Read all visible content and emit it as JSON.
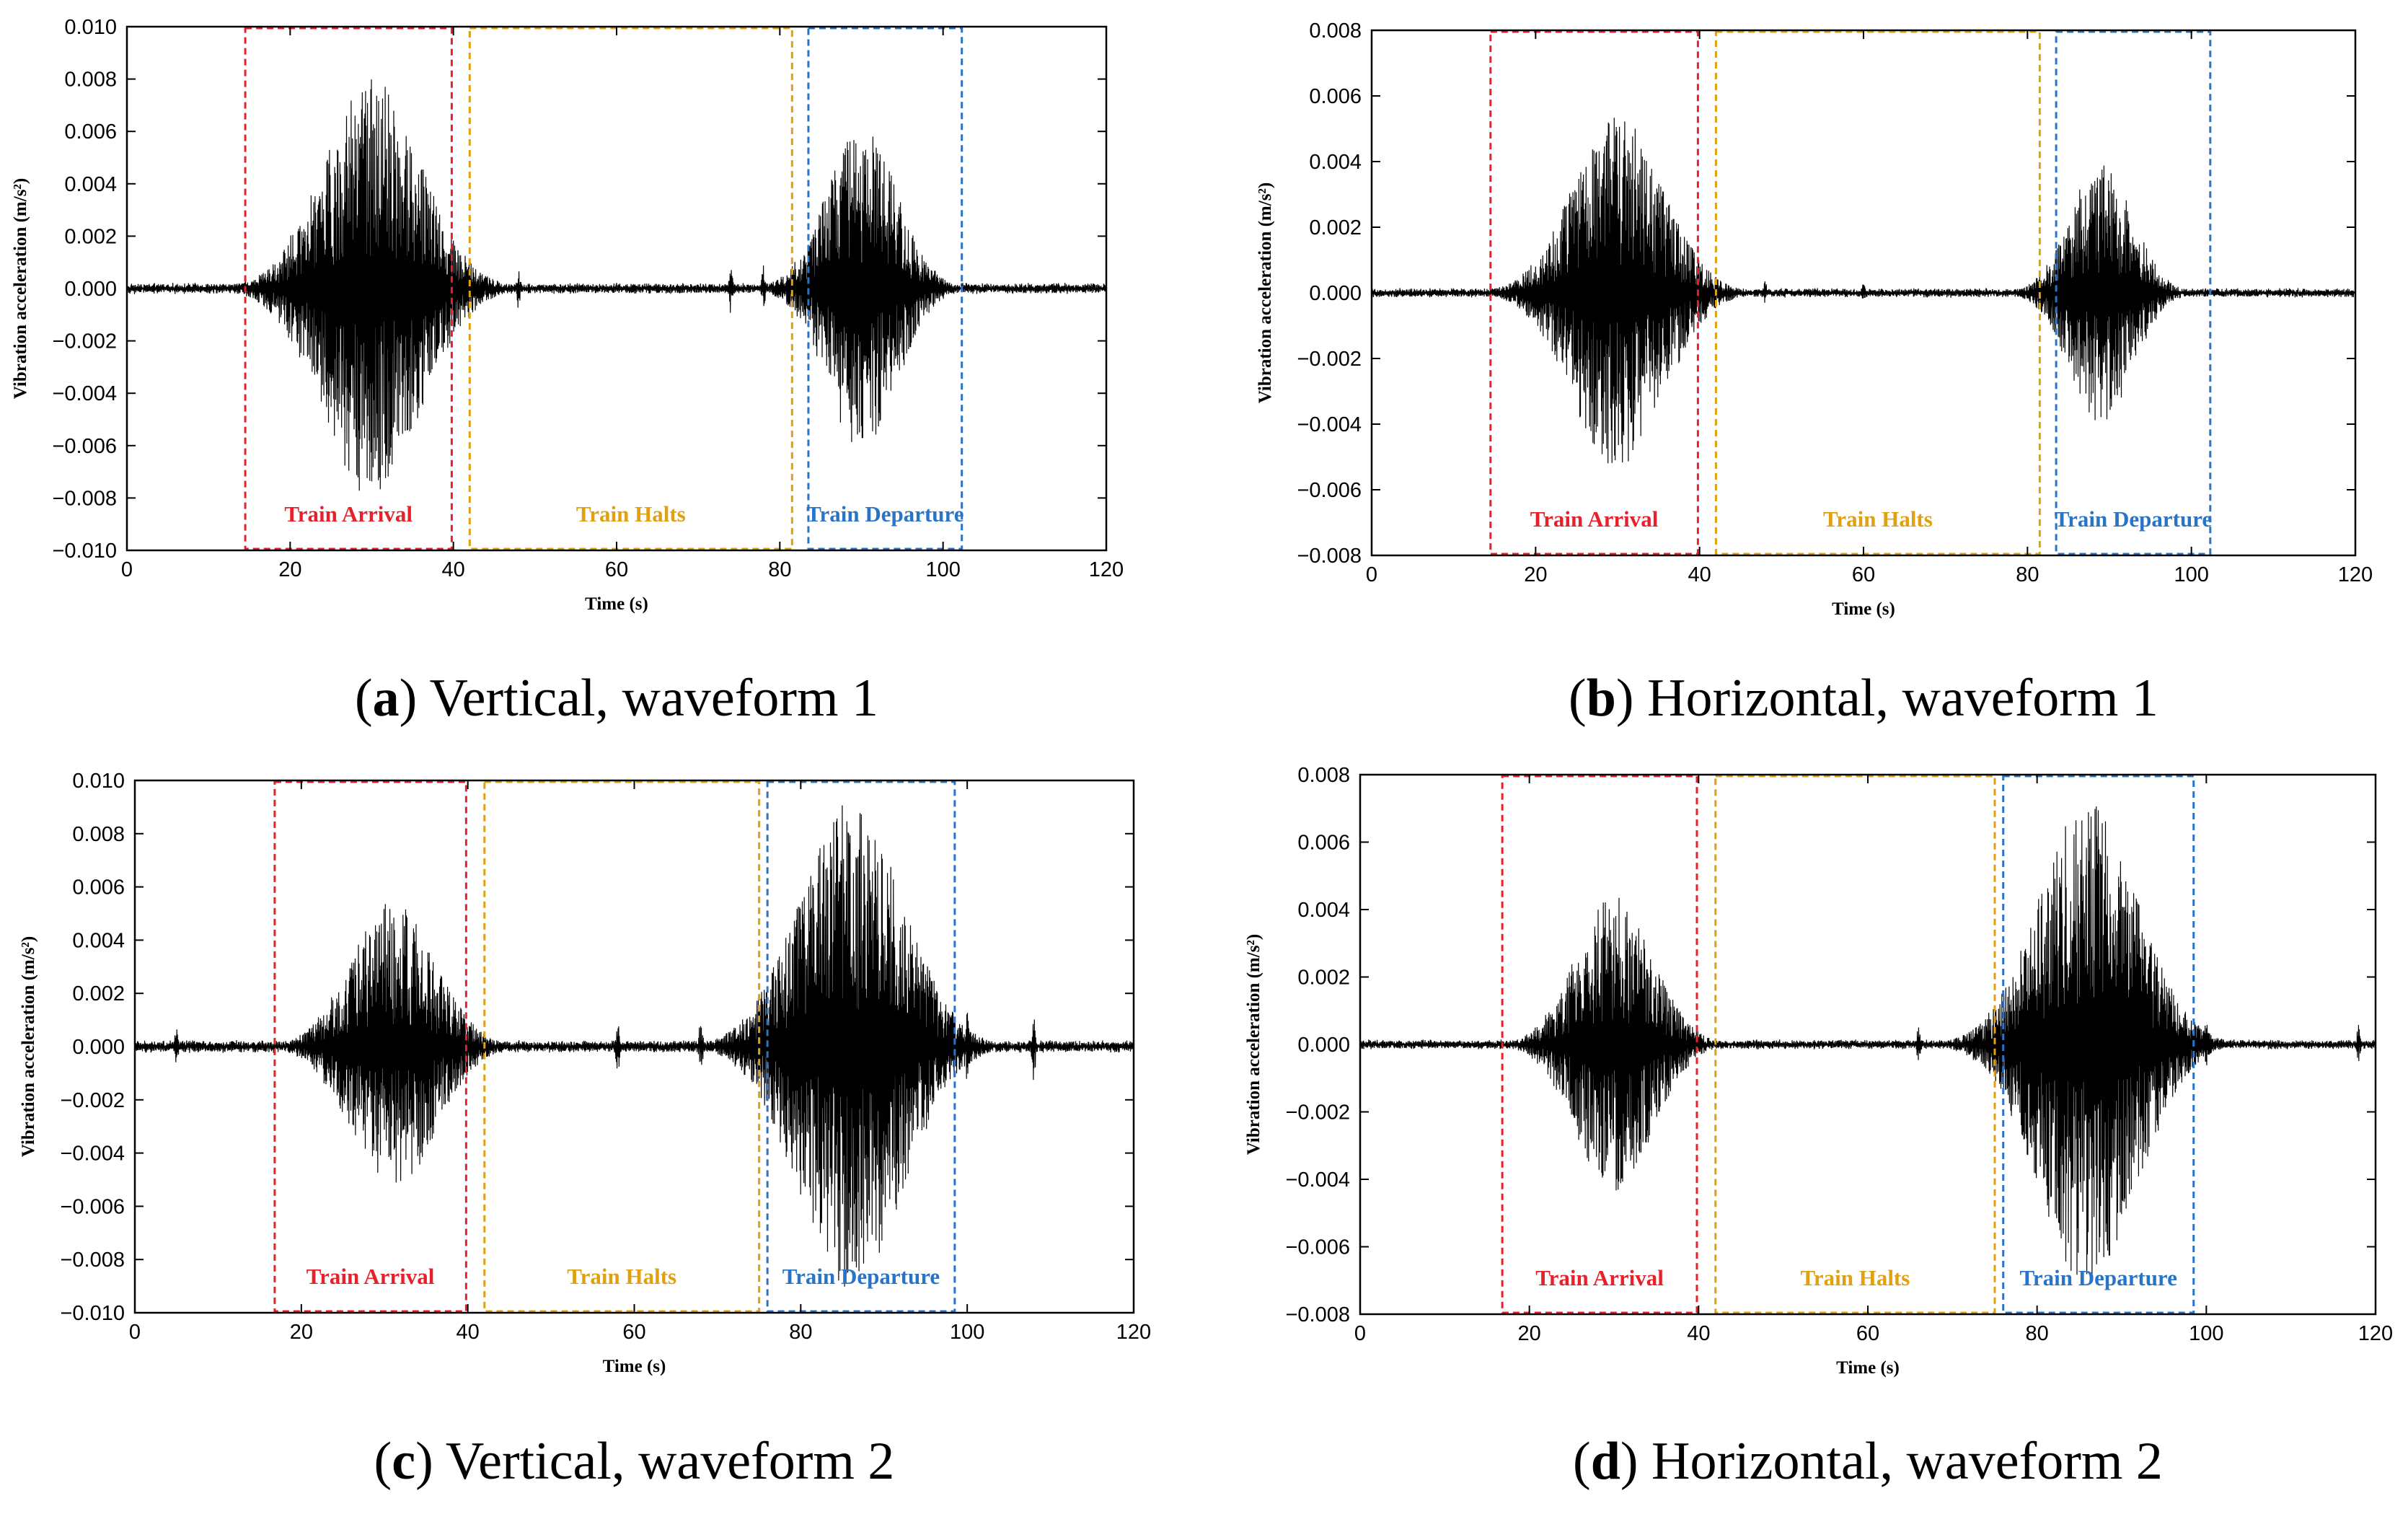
{
  "chart_data": [
    {
      "type": "line",
      "id": "a",
      "caption_letter": "a",
      "caption_text": "Vertical, waveform 1",
      "xlabel": "Time (s)",
      "ylabel": "Vibration acceleration (m/s²)",
      "xlim": [
        0,
        120
      ],
      "ylim": [
        -0.01,
        0.01
      ],
      "xticks": [
        "0",
        "20",
        "40",
        "60",
        "80",
        "100",
        "120"
      ],
      "yticks": [
        "0.010",
        "0.008",
        "0.006",
        "0.004",
        "0.002",
        "0.000",
        "−0.002",
        "−0.004",
        "−0.006",
        "−0.008",
        "−0.010"
      ],
      "regions": [
        {
          "label": "Train Arrival",
          "color": "#e8202a",
          "x_start": 14.5,
          "x_end": 39.8
        },
        {
          "label": "Train Halts",
          "color": "#e0a010",
          "x_start": 42.0,
          "x_end": 81.5
        },
        {
          "label": "Train Departure",
          "color": "#2a74c8",
          "x_start": 83.5,
          "x_end": 102.3
        }
      ],
      "noise_level": 0.00022,
      "bursts": [
        {
          "center": 30,
          "width": 6.0,
          "amplitude": 0.008
        },
        {
          "center": 90,
          "width": 4.3,
          "amplitude": 0.0062
        }
      ],
      "spikes": [
        {
          "t": 48,
          "amplitude": 0.001
        },
        {
          "t": 74,
          "amplitude": 0.0012
        },
        {
          "t": 78,
          "amplitude": 0.0009
        }
      ]
    },
    {
      "type": "line",
      "id": "b",
      "caption_letter": "b",
      "caption_text": "Horizontal, waveform 1",
      "xlabel": "Time (s)",
      "ylabel": "Vibration acceleration (m/s²)",
      "xlim": [
        0,
        120
      ],
      "ylim": [
        -0.008,
        0.008
      ],
      "xticks": [
        "0",
        "20",
        "40",
        "60",
        "80",
        "100",
        "120"
      ],
      "yticks": [
        "0.008",
        "0.006",
        "0.004",
        "0.002",
        "0.000",
        "−0.002",
        "−0.004",
        "−0.006",
        "−0.008"
      ],
      "regions": [
        {
          "label": "Train Arrival",
          "color": "#e8202a",
          "x_start": 14.5,
          "x_end": 39.8
        },
        {
          "label": "Train Halts",
          "color": "#e0a010",
          "x_start": 42.0,
          "x_end": 81.5
        },
        {
          "label": "Train Departure",
          "color": "#2a74c8",
          "x_start": 83.5,
          "x_end": 102.3
        }
      ],
      "noise_level": 0.00015,
      "bursts": [
        {
          "center": 30,
          "width": 5.5,
          "amplitude": 0.0054
        },
        {
          "center": 89,
          "width": 3.8,
          "amplitude": 0.004
        }
      ],
      "spikes": [
        {
          "t": 48,
          "amplitude": 0.0004
        },
        {
          "t": 60,
          "amplitude": 0.0003
        }
      ]
    },
    {
      "type": "line",
      "id": "c",
      "caption_letter": "c",
      "caption_text": "Vertical, waveform 2",
      "xlabel": "Time (s)",
      "ylabel": "Vibration acceleration (m/s²)",
      "xlim": [
        0,
        120
      ],
      "ylim": [
        -0.01,
        0.01
      ],
      "xticks": [
        "0",
        "20",
        "40",
        "60",
        "80",
        "100",
        "120"
      ],
      "yticks": [
        "0.010",
        "0.008",
        "0.006",
        "0.004",
        "0.002",
        "0.000",
        "−0.002",
        "−0.004",
        "−0.006",
        "−0.008",
        "−0.010"
      ],
      "regions": [
        {
          "label": "Train Arrival",
          "color": "#e8202a",
          "x_start": 16.8,
          "x_end": 39.8
        },
        {
          "label": "Train Halts",
          "color": "#e0a010",
          "x_start": 42.0,
          "x_end": 75.0
        },
        {
          "label": "Train Departure",
          "color": "#2a74c8",
          "x_start": 76.0,
          "x_end": 98.5
        }
      ],
      "noise_level": 0.00025,
      "bursts": [
        {
          "center": 31,
          "width": 5.0,
          "amplitude": 0.0055
        },
        {
          "center": 86,
          "width": 6.2,
          "amplitude": 0.0092
        }
      ],
      "spikes": [
        {
          "t": 5,
          "amplitude": 0.0008
        },
        {
          "t": 58,
          "amplitude": 0.0012
        },
        {
          "t": 68,
          "amplitude": 0.0013
        },
        {
          "t": 100,
          "amplitude": 0.0016
        },
        {
          "t": 108,
          "amplitude": 0.0014
        }
      ]
    },
    {
      "type": "line",
      "id": "d",
      "caption_letter": "d",
      "caption_text": "Horizontal, waveform 2",
      "xlabel": "Time (s)",
      "ylabel": "Vibration acceleration (m/s²)",
      "xlim": [
        0,
        120
      ],
      "ylim": [
        -0.008,
        0.008
      ],
      "xticks": [
        "0",
        "20",
        "40",
        "60",
        "80",
        "100",
        "120"
      ],
      "yticks": [
        "0.008",
        "0.006",
        "0.004",
        "0.002",
        "0.000",
        "−0.002",
        "−0.004",
        "−0.006",
        "−0.008"
      ],
      "regions": [
        {
          "label": "Train Arrival",
          "color": "#e8202a",
          "x_start": 16.8,
          "x_end": 39.8
        },
        {
          "label": "Train Halts",
          "color": "#e0a010",
          "x_start": 42.0,
          "x_end": 75.0
        },
        {
          "label": "Train Departure",
          "color": "#2a74c8",
          "x_start": 76.0,
          "x_end": 98.5
        }
      ],
      "noise_level": 0.00015,
      "bursts": [
        {
          "center": 30,
          "width": 4.5,
          "amplitude": 0.0044
        },
        {
          "center": 86,
          "width": 5.8,
          "amplitude": 0.0072
        }
      ],
      "spikes": [
        {
          "t": 66,
          "amplitude": 0.0006
        },
        {
          "t": 100,
          "amplitude": 0.0008
        },
        {
          "t": 118,
          "amplitude": 0.0006
        }
      ]
    }
  ],
  "colors": {
    "signal": "#000000",
    "axis": "#000000"
  }
}
